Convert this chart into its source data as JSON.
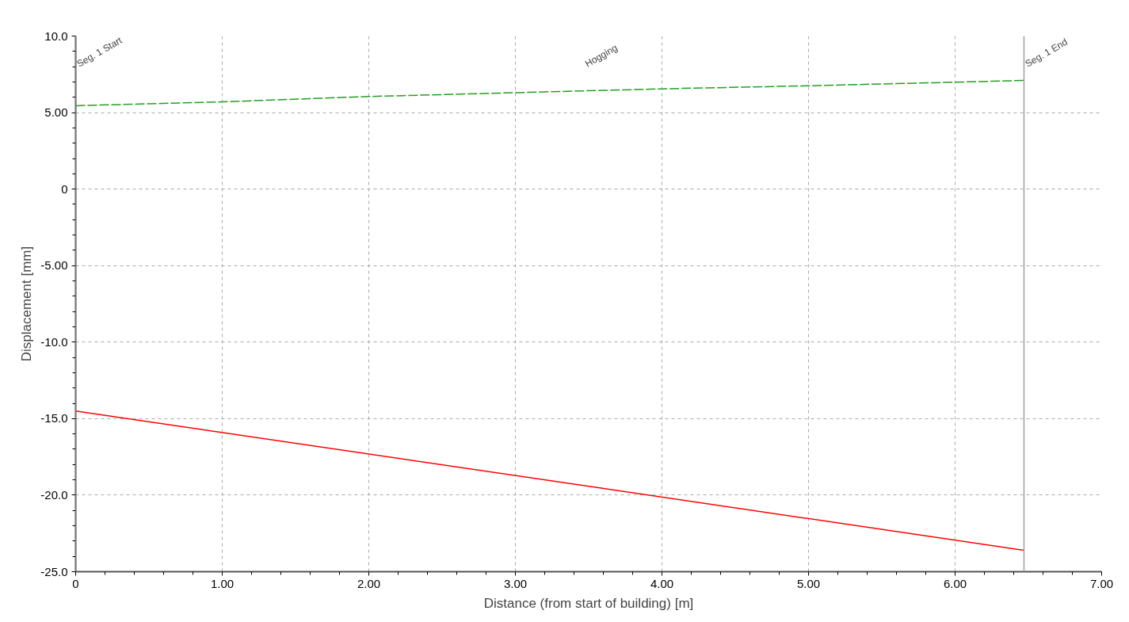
{
  "chart_data": {
    "type": "line",
    "xlabel": "Distance (from start of building) [m]",
    "ylabel": "Displacement [mm]",
    "xlim": [
      0,
      7
    ],
    "ylim": [
      -25,
      10
    ],
    "xticks": [
      0,
      {
        "value": 1,
        "label": "1.00"
      },
      {
        "value": 2,
        "label": "2.00"
      },
      {
        "value": 3,
        "label": "3.00"
      },
      {
        "value": 4,
        "label": "4.00"
      },
      {
        "value": 5,
        "label": "5.00"
      },
      {
        "value": 6,
        "label": "6.00"
      },
      {
        "value": 7,
        "label": "7.00"
      }
    ],
    "yticks": [
      {
        "value": 10,
        "label": "10.0"
      },
      {
        "value": 5,
        "label": "5.00"
      },
      0,
      {
        "value": -5,
        "label": "-5.00"
      },
      {
        "value": -10,
        "label": "-10.0"
      },
      {
        "value": -15,
        "label": "-15.0"
      },
      {
        "value": -20,
        "label": "-20.0"
      },
      {
        "value": -25,
        "label": "-25.0"
      }
    ],
    "grid": true,
    "marker": "none",
    "series": [
      {
        "color": "#22a022",
        "line_style": "dashed",
        "x": [
          0,
          1.0,
          2.0,
          3.0,
          4.0,
          5.0,
          6.47
        ],
        "values": [
          5.45,
          5.7,
          6.05,
          6.3,
          6.55,
          6.75,
          7.1
        ]
      },
      {
        "color": "#ff0000",
        "line_style": "solid",
        "x": [
          0,
          6.47
        ],
        "values": [
          -14.5,
          -23.6
        ]
      }
    ],
    "ref_lines": [
      {
        "axis": "x",
        "value": 0,
        "label": "Seg. 1 Start",
        "color": "#a0a0a0"
      },
      {
        "axis": "x",
        "value": 6.47,
        "label": "Seg. 1 End",
        "color": "#a0a0a0"
      }
    ],
    "annotations": [
      "Hogging"
    ]
  }
}
